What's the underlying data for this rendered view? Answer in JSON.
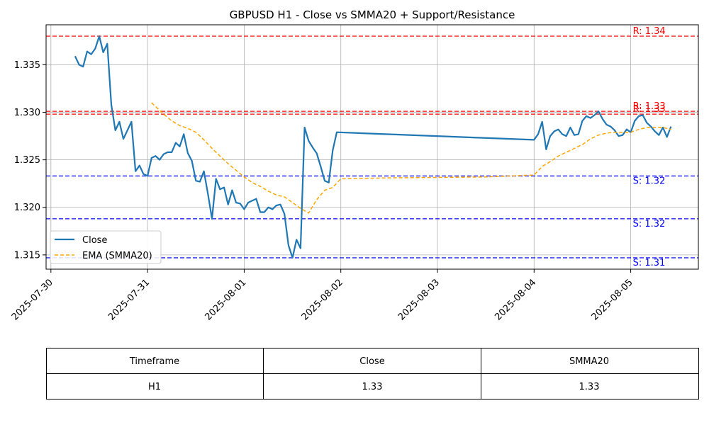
{
  "chart_data": {
    "type": "line",
    "title": "GBPUSD H1 - Close vs SMMA20 + Support/Resistance",
    "xlabel": "",
    "ylabel": "",
    "x_ticks": [
      "2025-07-30",
      "2025-07-31",
      "2025-08-01",
      "2025-08-02",
      "2025-08-03",
      "2025-08-04",
      "2025-08-05"
    ],
    "y_ticks": [
      "1.315",
      "1.320",
      "1.325",
      "1.330",
      "1.335"
    ],
    "xlim": [
      "2025-07-29T22:48",
      "2025-08-05T16:48"
    ],
    "ylim": [
      1.3135,
      1.3392
    ],
    "grid": true,
    "legend_position": "lower-left",
    "series": [
      {
        "name": "Close",
        "color": "#1f77b4",
        "style": "solid",
        "x": [
          "2025-07-30T06:00",
          "2025-07-30T07:00",
          "2025-07-30T08:00",
          "2025-07-30T09:00",
          "2025-07-30T10:00",
          "2025-07-30T11:00",
          "2025-07-30T12:00",
          "2025-07-30T13:00",
          "2025-07-30T14:00",
          "2025-07-30T15:00",
          "2025-07-30T16:00",
          "2025-07-30T17:00",
          "2025-07-30T18:00",
          "2025-07-30T19:00",
          "2025-07-30T20:00",
          "2025-07-30T21:00",
          "2025-07-30T22:00",
          "2025-07-30T23:00",
          "2025-07-31T00:00",
          "2025-07-31T01:00",
          "2025-07-31T02:00",
          "2025-07-31T03:00",
          "2025-07-31T04:00",
          "2025-07-31T05:00",
          "2025-07-31T06:00",
          "2025-07-31T07:00",
          "2025-07-31T08:00",
          "2025-07-31T09:00",
          "2025-07-31T10:00",
          "2025-07-31T11:00",
          "2025-07-31T12:00",
          "2025-07-31T13:00",
          "2025-07-31T14:00",
          "2025-07-31T15:00",
          "2025-07-31T16:00",
          "2025-07-31T17:00",
          "2025-07-31T18:00",
          "2025-07-31T19:00",
          "2025-07-31T20:00",
          "2025-07-31T21:00",
          "2025-07-31T22:00",
          "2025-07-31T23:00",
          "2025-08-01T00:00",
          "2025-08-01T01:00",
          "2025-08-01T02:00",
          "2025-08-01T03:00",
          "2025-08-01T04:00",
          "2025-08-01T05:00",
          "2025-08-01T06:00",
          "2025-08-01T07:00",
          "2025-08-01T08:00",
          "2025-08-01T09:00",
          "2025-08-01T10:00",
          "2025-08-01T11:00",
          "2025-08-01T12:00",
          "2025-08-01T13:00",
          "2025-08-01T14:00",
          "2025-08-01T15:00",
          "2025-08-01T16:00",
          "2025-08-01T17:00",
          "2025-08-01T18:00",
          "2025-08-01T19:00",
          "2025-08-01T20:00",
          "2025-08-01T21:00",
          "2025-08-01T22:00",
          "2025-08-01T23:00",
          "2025-08-04T00:00",
          "2025-08-04T01:00",
          "2025-08-04T02:00",
          "2025-08-04T03:00",
          "2025-08-04T04:00",
          "2025-08-04T05:00",
          "2025-08-04T06:00",
          "2025-08-04T07:00",
          "2025-08-04T08:00",
          "2025-08-04T09:00",
          "2025-08-04T10:00",
          "2025-08-04T11:00",
          "2025-08-04T12:00",
          "2025-08-04T13:00",
          "2025-08-04T14:00",
          "2025-08-04T15:00",
          "2025-08-04T16:00",
          "2025-08-04T17:00",
          "2025-08-04T18:00",
          "2025-08-04T19:00",
          "2025-08-04T20:00",
          "2025-08-04T21:00",
          "2025-08-04T22:00",
          "2025-08-04T23:00",
          "2025-08-05T00:00",
          "2025-08-05T01:00",
          "2025-08-05T02:00",
          "2025-08-05T03:00",
          "2025-08-05T04:00",
          "2025-08-05T05:00",
          "2025-08-05T06:00",
          "2025-08-05T07:00",
          "2025-08-05T08:00",
          "2025-08-05T09:00",
          "2025-08-05T10:00"
        ],
        "y": [
          1.3359,
          1.335,
          1.3348,
          1.3364,
          1.3361,
          1.3367,
          1.338,
          1.3363,
          1.3372,
          1.3308,
          1.3281,
          1.329,
          1.3272,
          1.3281,
          1.329,
          1.3238,
          1.3244,
          1.3235,
          1.3233,
          1.3252,
          1.3254,
          1.325,
          1.3256,
          1.3258,
          1.3258,
          1.3268,
          1.3264,
          1.3277,
          1.3257,
          1.3249,
          1.3228,
          1.3227,
          1.3238,
          1.3214,
          1.3188,
          1.323,
          1.3219,
          1.3221,
          1.3203,
          1.3218,
          1.3205,
          1.3204,
          1.3198,
          1.3205,
          1.3207,
          1.3209,
          1.3195,
          1.3195,
          1.32,
          1.3198,
          1.3202,
          1.3203,
          1.3193,
          1.316,
          1.3147,
          1.3166,
          1.3157,
          1.3284,
          1.327,
          1.3263,
          1.3257,
          1.3243,
          1.3228,
          1.3226,
          1.326,
          1.3279,
          1.3271,
          1.3277,
          1.329,
          1.3261,
          1.3275,
          1.328,
          1.3282,
          1.3277,
          1.3275,
          1.3284,
          1.3276,
          1.3277,
          1.3291,
          1.3296,
          1.3294,
          1.3297,
          1.3301,
          1.3293,
          1.3287,
          1.3285,
          1.3281,
          1.3275,
          1.3276,
          1.3282,
          1.3279,
          1.3291,
          1.3296,
          1.3297,
          1.3289,
          1.3285,
          1.328,
          1.3276,
          1.3284,
          1.3274,
          1.3285
        ]
      },
      {
        "name": "EMA (SMMA20)",
        "color": "#ffa500",
        "style": "dashed",
        "x": [
          "2025-07-31T01:00",
          "2025-07-31T04:00",
          "2025-07-31T06:00",
          "2025-07-31T08:00",
          "2025-07-31T10:00",
          "2025-07-31T12:00",
          "2025-07-31T14:00",
          "2025-07-31T16:00",
          "2025-07-31T18:00",
          "2025-07-31T20:00",
          "2025-07-31T22:00",
          "2025-08-01T00:00",
          "2025-08-01T02:00",
          "2025-08-01T04:00",
          "2025-08-01T06:00",
          "2025-08-01T08:00",
          "2025-08-01T10:00",
          "2025-08-01T12:00",
          "2025-08-01T14:00",
          "2025-08-01T16:00",
          "2025-08-01T18:00",
          "2025-08-01T20:00",
          "2025-08-01T22:00",
          "2025-08-02T00:00",
          "2025-08-02T12:00",
          "2025-08-03T12:00",
          "2025-08-04T00:00",
          "2025-08-04T02:00",
          "2025-08-04T04:00",
          "2025-08-04T06:00",
          "2025-08-04T08:00",
          "2025-08-04T10:00",
          "2025-08-04T12:00",
          "2025-08-04T14:00",
          "2025-08-04T16:00",
          "2025-08-04T18:00",
          "2025-08-04T20:00",
          "2025-08-04T22:00",
          "2025-08-05T00:00",
          "2025-08-05T02:00",
          "2025-08-05T04:00",
          "2025-08-05T06:00",
          "2025-08-05T08:00",
          "2025-08-05T10:00"
        ],
        "y": [
          1.331,
          1.3298,
          1.3291,
          1.3286,
          1.3283,
          1.3279,
          1.3271,
          1.3262,
          1.3254,
          1.3246,
          1.3239,
          1.3232,
          1.3226,
          1.3222,
          1.3217,
          1.3213,
          1.3211,
          1.3205,
          1.3199,
          1.3194,
          1.3208,
          1.3218,
          1.3221,
          1.323,
          1.3231,
          1.3232,
          1.3234,
          1.3243,
          1.3248,
          1.3254,
          1.3258,
          1.3262,
          1.3266,
          1.3272,
          1.3276,
          1.3278,
          1.3279,
          1.3279,
          1.3279,
          1.3282,
          1.3284,
          1.3284,
          1.3284,
          1.3282
        ]
      }
    ],
    "levels": [
      {
        "kind": "resistance",
        "value": 1.338,
        "label": "R: 1.34",
        "color": "#ff0000"
      },
      {
        "kind": "resistance",
        "value": 1.3301,
        "label": "R: 1.33",
        "color": "#ff0000"
      },
      {
        "kind": "resistance",
        "value": 1.3298,
        "label": "R: 1.33",
        "color": "#ff0000"
      },
      {
        "kind": "support",
        "value": 1.3233,
        "label": "S: 1.32",
        "color": "#0000ff"
      },
      {
        "kind": "support",
        "value": 1.3188,
        "label": "S: 1.32",
        "color": "#0000ff"
      },
      {
        "kind": "support",
        "value": 1.3147,
        "label": "S: 1.31",
        "color": "#0000ff"
      }
    ]
  },
  "table": {
    "headers": [
      "Timeframe",
      "Close",
      "SMMA20"
    ],
    "rows": [
      [
        "H1",
        "1.33",
        "1.33"
      ]
    ]
  }
}
